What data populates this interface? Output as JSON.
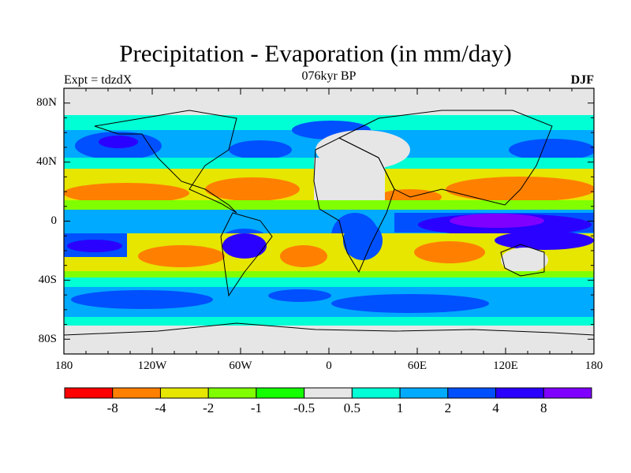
{
  "title": "Precipitation - Evaporation (in mm/day)",
  "left_subtitle": "Expt = tdzdX",
  "center_subtitle": "076kyr BP",
  "right_subtitle": "DJF",
  "lat_ticks": [
    "80N",
    "40N",
    "0",
    "40S",
    "80S"
  ],
  "lon_ticks": [
    "180",
    "120W",
    "60W",
    "0",
    "60E",
    "120E",
    "180"
  ],
  "colorbar": {
    "labels": [
      "-8",
      "-4",
      "-2",
      "-1",
      "-0.5",
      "0.5",
      "1",
      "2",
      "4",
      "8"
    ],
    "colors": [
      "#ff0000",
      "#ff8000",
      "#e6e600",
      "#80ff00",
      "#14ff00",
      "#e6e6e6",
      "#00ffd5",
      "#00aaff",
      "#0050ff",
      "#2a00ff",
      "#7f00ff"
    ]
  }
}
